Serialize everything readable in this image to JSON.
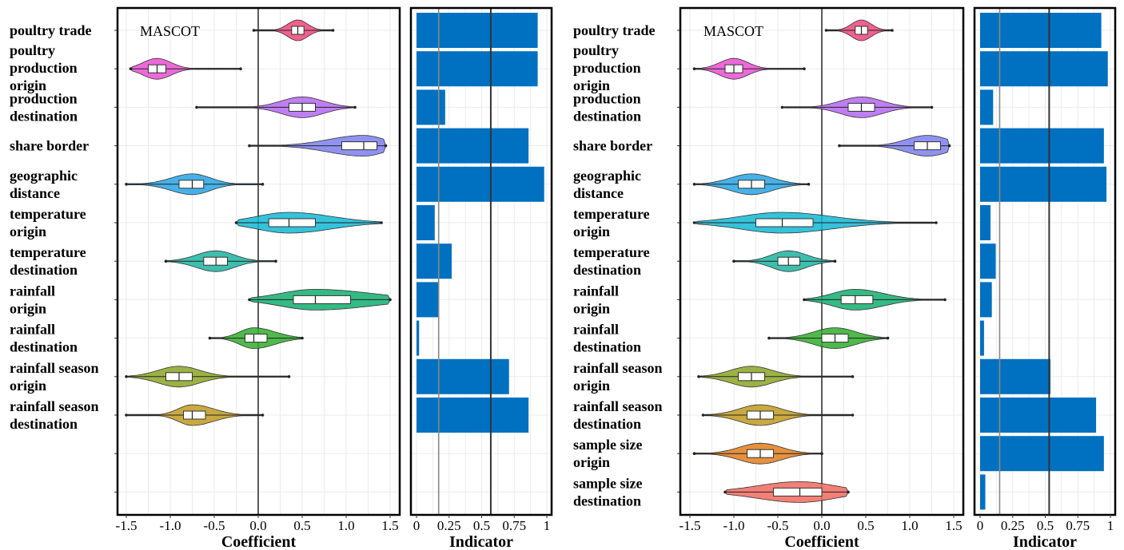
{
  "chart_data": [
    {
      "type": "violin",
      "panel": "left",
      "annotation": "MASCOT",
      "xlabel": "Coefficient",
      "xlim": [
        -1.5,
        1.5
      ],
      "xticks": [
        "-1.5",
        "-1.0",
        "-0.5",
        "0.0",
        "0.5",
        "1.0",
        "1.5"
      ],
      "categories": [
        [
          "poultry trade"
        ],
        [
          "poultry",
          "production",
          "origin"
        ],
        [
          "production",
          "destination"
        ],
        [
          "share border"
        ],
        [
          "geographic",
          "distance"
        ],
        [
          "temperature",
          "origin"
        ],
        [
          "temperature",
          "destination"
        ],
        [
          "rainfall",
          "origin"
        ],
        [
          "rainfall",
          "destination"
        ],
        [
          "rainfall season",
          "origin"
        ],
        [
          "rainfall season",
          "destination"
        ]
      ],
      "series": [
        {
          "min": -0.05,
          "q1": 0.38,
          "median": 0.45,
          "q3": 0.52,
          "max": 0.85,
          "color": "#f0457a"
        },
        {
          "min": -1.45,
          "q1": -1.25,
          "median": -1.15,
          "q3": -1.05,
          "max": -0.2,
          "color": "#ea4fd2"
        },
        {
          "min": -0.7,
          "q1": 0.35,
          "median": 0.5,
          "q3": 0.65,
          "max": 1.1,
          "color": "#b467f0"
        },
        {
          "min": -0.1,
          "q1": 0.95,
          "median": 1.2,
          "q3": 1.35,
          "max": 1.45,
          "color": "#7d7ff0"
        },
        {
          "min": -1.5,
          "q1": -0.9,
          "median": -0.75,
          "q3": -0.62,
          "max": 0.05,
          "color": "#26a4e6"
        },
        {
          "min": -0.25,
          "q1": 0.12,
          "median": 0.35,
          "q3": 0.65,
          "max": 1.4,
          "color": "#10b8d4"
        },
        {
          "min": -1.05,
          "q1": -0.62,
          "median": -0.48,
          "q3": -0.35,
          "max": 0.2,
          "color": "#1cb4a0"
        },
        {
          "min": -0.1,
          "q1": 0.4,
          "median": 0.65,
          "q3": 1.05,
          "max": 1.5,
          "color": "#12ae6e"
        },
        {
          "min": -0.55,
          "q1": -0.15,
          "median": -0.05,
          "q3": 0.1,
          "max": 0.5,
          "color": "#2fae2a"
        },
        {
          "min": -1.5,
          "q1": -1.05,
          "median": -0.9,
          "q3": -0.75,
          "max": 0.35,
          "color": "#8ca325"
        },
        {
          "min": -1.5,
          "q1": -0.85,
          "median": -0.75,
          "q3": -0.6,
          "max": 0.05,
          "color": "#bf9a1f"
        }
      ]
    },
    {
      "type": "bar",
      "panel": "left",
      "xlabel": "Indicator",
      "xlim": [
        0,
        1
      ],
      "xticks": [
        "0",
        "0.25",
        "0.5",
        "0.75",
        "1"
      ],
      "reference_lines": [
        0.17,
        0.57
      ],
      "values": [
        0.93,
        0.93,
        0.22,
        0.86,
        0.98,
        0.14,
        0.27,
        0.17,
        0.02,
        0.71,
        0.86
      ],
      "color": "#0070c0"
    },
    {
      "type": "violin",
      "panel": "right",
      "annotation": "MASCOT",
      "xlabel": "Coefficient",
      "xlim": [
        -1.5,
        1.5
      ],
      "xticks": [
        "-1.5",
        "-1.0",
        "-0.5",
        "0.0",
        "0.5",
        "1.0",
        "1.5"
      ],
      "categories": [
        [
          "poultry trade"
        ],
        [
          "poultry",
          "production",
          "origin"
        ],
        [
          "production",
          "destination"
        ],
        [
          "share border"
        ],
        [
          "geographic",
          "distance"
        ],
        [
          "temperature",
          "origin"
        ],
        [
          "temperature",
          "destination"
        ],
        [
          "rainfall",
          "origin"
        ],
        [
          "rainfall",
          "destination"
        ],
        [
          "rainfall season",
          "origin"
        ],
        [
          "rainfall season",
          "destination"
        ],
        [
          "sample size",
          "origin"
        ],
        [
          "sample size",
          "destination"
        ]
      ],
      "series": [
        {
          "min": 0.05,
          "q1": 0.38,
          "median": 0.45,
          "q3": 0.52,
          "max": 0.8,
          "color": "#f0457a"
        },
        {
          "min": -1.45,
          "q1": -1.1,
          "median": -1.0,
          "q3": -0.9,
          "max": -0.2,
          "color": "#ea4fd2"
        },
        {
          "min": -0.45,
          "q1": 0.3,
          "median": 0.45,
          "q3": 0.6,
          "max": 1.25,
          "color": "#b467f0"
        },
        {
          "min": 0.2,
          "q1": 1.05,
          "median": 1.2,
          "q3": 1.35,
          "max": 1.45,
          "color": "#7d7ff0"
        },
        {
          "min": -1.45,
          "q1": -0.95,
          "median": -0.8,
          "q3": -0.65,
          "max": -0.15,
          "color": "#26a4e6"
        },
        {
          "min": -1.45,
          "q1": -0.75,
          "median": -0.45,
          "q3": -0.1,
          "max": 1.3,
          "color": "#10b8d4"
        },
        {
          "min": -1.0,
          "q1": -0.5,
          "median": -0.38,
          "q3": -0.25,
          "max": 0.15,
          "color": "#1cb4a0"
        },
        {
          "min": -0.2,
          "q1": 0.22,
          "median": 0.38,
          "q3": 0.58,
          "max": 1.4,
          "color": "#12ae6e"
        },
        {
          "min": -0.6,
          "q1": 0.0,
          "median": 0.15,
          "q3": 0.3,
          "max": 0.75,
          "color": "#2fae2a"
        },
        {
          "min": -1.4,
          "q1": -0.95,
          "median": -0.8,
          "q3": -0.65,
          "max": 0.35,
          "color": "#8ca325"
        },
        {
          "min": -1.35,
          "q1": -0.85,
          "median": -0.7,
          "q3": -0.55,
          "max": 0.35,
          "color": "#bf9a1f"
        },
        {
          "min": -1.45,
          "q1": -0.85,
          "median": -0.7,
          "q3": -0.55,
          "max": 0.0,
          "color": "#e07e1d"
        },
        {
          "min": -1.1,
          "q1": -0.55,
          "median": -0.25,
          "q3": 0.0,
          "max": 0.3,
          "color": "#f06a5f"
        }
      ]
    },
    {
      "type": "bar",
      "panel": "right",
      "xlabel": "Indicator",
      "xlim": [
        0,
        1
      ],
      "xticks": [
        "0",
        "0.25",
        "0.5",
        "0.75",
        "1"
      ],
      "reference_lines": [
        0.15,
        0.53
      ],
      "values": [
        0.93,
        0.98,
        0.1,
        0.95,
        0.97,
        0.08,
        0.12,
        0.09,
        0.03,
        0.54,
        0.89,
        0.95,
        0.04
      ],
      "color": "#0070c0"
    }
  ]
}
